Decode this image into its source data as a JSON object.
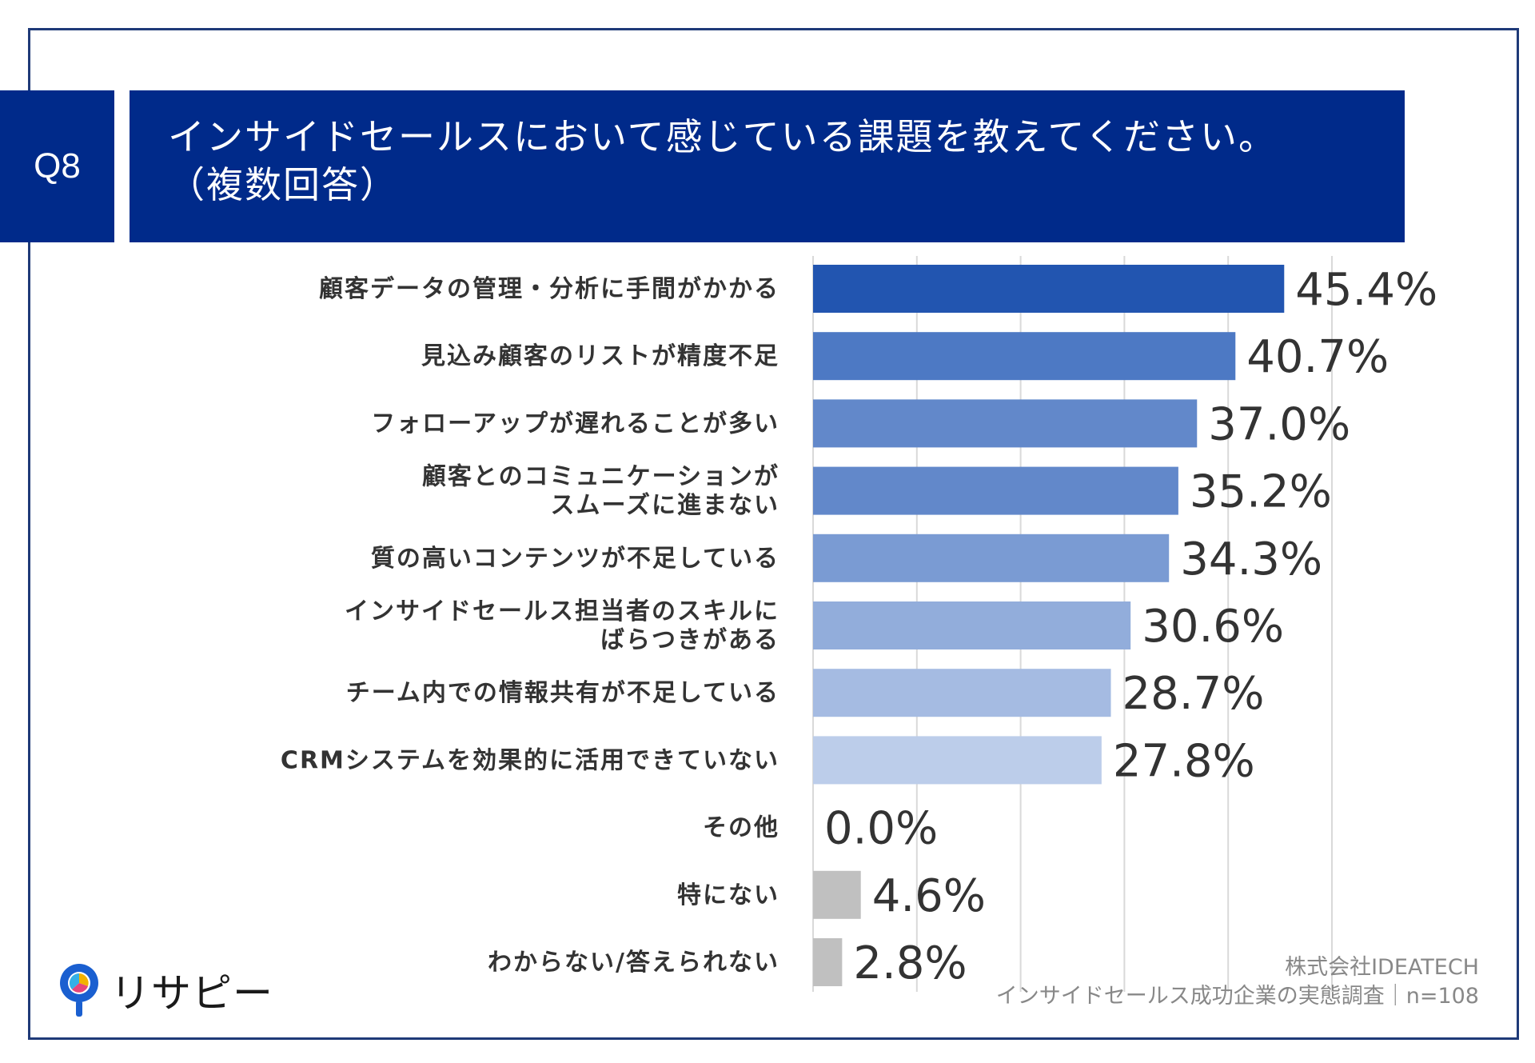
{
  "question": {
    "label": "Q8",
    "title_line1": "インサイドセールスにおいて感じている課題を教えてください。",
    "title_line2": "（複数回答）"
  },
  "source": {
    "line1": "株式会社IDEATECH",
    "line2": "インサイドセールス成功企業の実態調査｜n=108"
  },
  "logo": {
    "text": "リサピー"
  },
  "chart_data": {
    "type": "bar",
    "orientation": "horizontal",
    "categories": [
      [
        "顧客データの管理・分析に手間がかかる"
      ],
      [
        "見込み顧客のリストが精度不足"
      ],
      [
        "フォローアップが遅れることが多い"
      ],
      [
        "顧客とのコミュニケーションが",
        "スムーズに進まない"
      ],
      [
        "質の高いコンテンツが不足している"
      ],
      [
        "インサイドセールス担当者のスキルに",
        "ばらつきがある"
      ],
      [
        "チーム内での情報共有が不足している"
      ],
      [
        "CRMシステムを効果的に活用できていない"
      ],
      [
        "その他"
      ],
      [
        "特にない"
      ],
      [
        "わからない/答えられない"
      ]
    ],
    "values": [
      45.4,
      40.7,
      37.0,
      35.2,
      34.3,
      30.6,
      28.7,
      27.8,
      0.0,
      4.6,
      2.8
    ],
    "value_labels": [
      "45.4%",
      "40.7%",
      "37.0%",
      "35.2%",
      "34.3%",
      "30.6%",
      "28.7%",
      "27.8%",
      "0.0%",
      "4.6%",
      "2.8%"
    ],
    "colors": [
      "#2255b0",
      "#4d79c4",
      "#6288ca",
      "#6288ca",
      "#7a9bd3",
      "#92addb",
      "#a5bbe2",
      "#bccdea",
      "#bccdea",
      "#c0c0c0",
      "#c0c0c0"
    ],
    "xlim": [
      0,
      50
    ],
    "grid_ticks": [
      10,
      20,
      30,
      40,
      50
    ],
    "grid": true
  }
}
